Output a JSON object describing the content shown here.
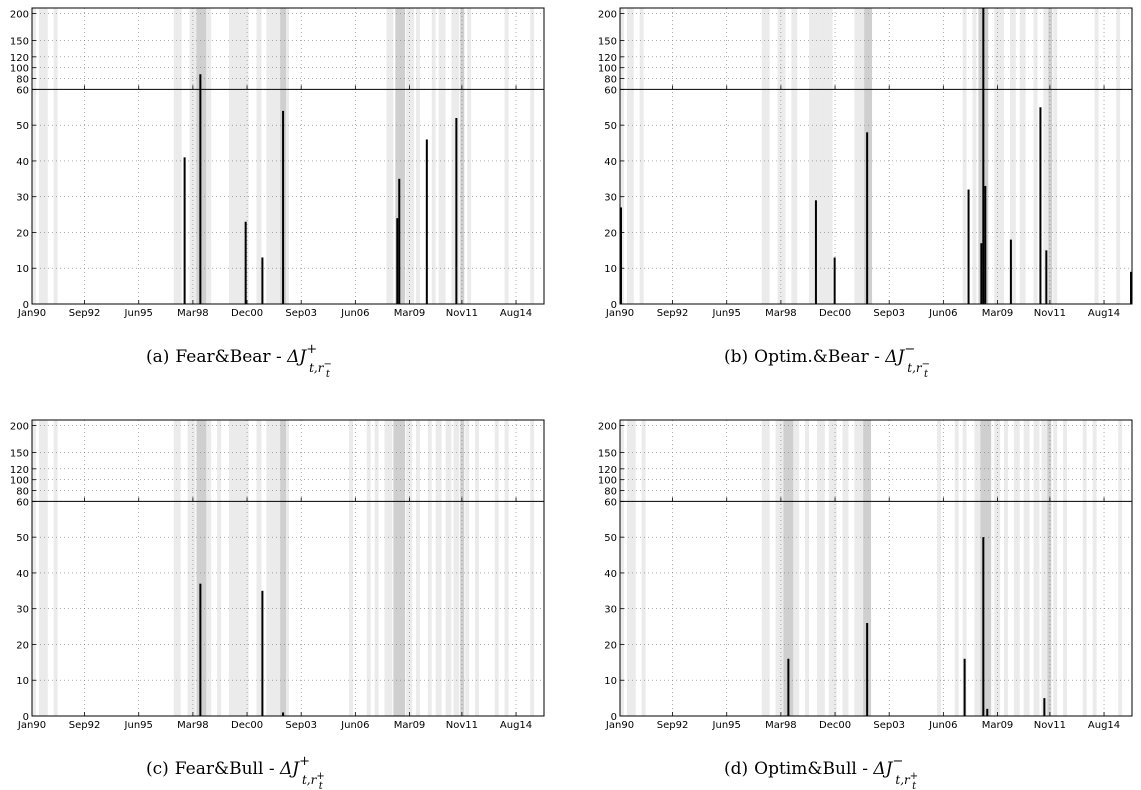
{
  "colors": {
    "shade_light": "#ebebeb",
    "shade_dark": "#cfcfcf",
    "bar": "#000000",
    "grid": "#7a7a7a",
    "axis": "#000000"
  },
  "captions": [
    {
      "tag": "(a)",
      "label": "Fear&Bear - ",
      "delta": "ΔJ",
      "sup": "+",
      "sub": "t,r",
      "sub_sup": "−",
      "sub_sub": "t"
    },
    {
      "tag": "(b)",
      "label": "Optim.&Bear - ",
      "delta": "ΔJ",
      "sup": "−",
      "sub": "t,r",
      "sub_sup": "−",
      "sub_sub": "t"
    },
    {
      "tag": "(c)",
      "label": "Fear&Bull - ",
      "delta": "ΔJ",
      "sup": "+",
      "sub": "t,r",
      "sub_sup": "+",
      "sub_sub": "t"
    },
    {
      "tag": "(d)",
      "label": "Optim&Bull - ",
      "delta": "ΔJ",
      "sup": "−",
      "sub": "t,r",
      "sub_sup": "+",
      "sub_sub": "t"
    }
  ],
  "chart_data": [
    {
      "type": "bar",
      "title": "",
      "x_ticks": [
        "Jan90",
        "Sep92",
        "Jun95",
        "Mar98",
        "Dec00",
        "Sep03",
        "Jun06",
        "Mar09",
        "Nov11",
        "Aug14"
      ],
      "x_tick_years": [
        1990.0,
        1992.67,
        1995.42,
        1998.17,
        2000.92,
        2003.67,
        2006.42,
        2009.17,
        2011.83,
        2014.58
      ],
      "xlim": [
        1990.0,
        2016.0
      ],
      "y_ticks_lower": [
        0,
        10,
        20,
        30,
        40,
        50,
        60
      ],
      "y_ticks_upper": [
        60,
        80,
        100,
        120,
        150,
        200
      ],
      "ylim": [
        0,
        210
      ],
      "y_break": 60,
      "grid": true,
      "bars": [
        {
          "x": 1997.75,
          "value": 41
        },
        {
          "x": 1998.55,
          "value": 88
        },
        {
          "x": 2000.85,
          "value": 23
        },
        {
          "x": 2001.7,
          "value": 13
        },
        {
          "x": 2002.75,
          "value": 54
        },
        {
          "x": 2008.55,
          "value": 24
        },
        {
          "x": 2008.65,
          "value": 35
        },
        {
          "x": 2010.05,
          "value": 46
        },
        {
          "x": 2011.55,
          "value": 52
        }
      ],
      "shade_light": [
        [
          1990.0,
          1990.2
        ],
        [
          1990.35,
          1990.8
        ],
        [
          1991.1,
          1991.3
        ],
        [
          1997.2,
          1997.6
        ],
        [
          1998.0,
          1998.35
        ],
        [
          1998.85,
          1999.1
        ],
        [
          2000.0,
          2001.0
        ],
        [
          2001.4,
          2001.65
        ],
        [
          2001.9,
          2002.6
        ],
        [
          2002.9,
          2003.05
        ],
        [
          2008.0,
          2008.35
        ],
        [
          2009.0,
          2009.4
        ],
        [
          2009.5,
          2009.7
        ],
        [
          2010.3,
          2010.5
        ],
        [
          2010.65,
          2011.0
        ],
        [
          2011.3,
          2011.7
        ],
        [
          2012.1,
          2012.3
        ],
        [
          2014.0,
          2014.2
        ],
        [
          2015.3,
          2015.5
        ]
      ],
      "shade_dark": [
        [
          1998.35,
          1998.85
        ],
        [
          2002.6,
          2002.9
        ],
        [
          2008.45,
          2008.95
        ],
        [
          2011.75,
          2011.95
        ]
      ]
    },
    {
      "type": "bar",
      "title": "",
      "x_ticks": [
        "Jan90",
        "Sep92",
        "Jun95",
        "Mar98",
        "Dec00",
        "Sep03",
        "Jun06",
        "Mar09",
        "Nov11",
        "Aug14"
      ],
      "x_tick_years": [
        1990.0,
        1992.67,
        1995.42,
        1998.17,
        2000.92,
        2003.67,
        2006.42,
        2009.17,
        2011.83,
        2014.58
      ],
      "xlim": [
        1990.0,
        2016.0
      ],
      "y_ticks_lower": [
        0,
        10,
        20,
        30,
        40,
        50,
        60
      ],
      "y_ticks_upper": [
        60,
        80,
        100,
        120,
        150,
        200
      ],
      "ylim": [
        0,
        210
      ],
      "y_break": 60,
      "grid": true,
      "bars": [
        {
          "x": 1990.05,
          "value": 27
        },
        {
          "x": 1999.95,
          "value": 29
        },
        {
          "x": 2000.9,
          "value": 13
        },
        {
          "x": 2002.55,
          "value": 48
        },
        {
          "x": 2007.7,
          "value": 32
        },
        {
          "x": 2008.35,
          "value": 17
        },
        {
          "x": 2008.45,
          "value": 210
        },
        {
          "x": 2008.55,
          "value": 33
        },
        {
          "x": 2009.85,
          "value": 18
        },
        {
          "x": 2011.35,
          "value": 55
        },
        {
          "x": 2011.65,
          "value": 15
        },
        {
          "x": 2015.95,
          "value": 9
        }
      ],
      "shade_light": [
        [
          1990.0,
          1990.2
        ],
        [
          1990.35,
          1990.7
        ],
        [
          1991.0,
          1991.2
        ],
        [
          1997.2,
          1997.6
        ],
        [
          1998.0,
          1998.4
        ],
        [
          1998.7,
          1999.0
        ],
        [
          1999.6,
          2000.0
        ],
        [
          2000.0,
          2000.8
        ],
        [
          2001.9,
          2002.4
        ],
        [
          2007.4,
          2007.6
        ],
        [
          2007.9,
          2008.1
        ],
        [
          2009.0,
          2009.5
        ],
        [
          2009.8,
          2010.1
        ],
        [
          2010.3,
          2010.6
        ],
        [
          2011.0,
          2011.2
        ],
        [
          2011.5,
          2011.75
        ],
        [
          2012.0,
          2012.2
        ],
        [
          2014.1,
          2014.3
        ],
        [
          2015.2,
          2015.4
        ]
      ],
      "shade_dark": [
        [
          2002.4,
          2002.8
        ],
        [
          2008.2,
          2008.7
        ],
        [
          2011.75,
          2011.95
        ]
      ]
    },
    {
      "type": "bar",
      "title": "",
      "x_ticks": [
        "Jan90",
        "Sep92",
        "Jun95",
        "Mar98",
        "Dec00",
        "Sep03",
        "Jun06",
        "Mar09",
        "Nov11",
        "Aug14"
      ],
      "x_tick_years": [
        1990.0,
        1992.67,
        1995.42,
        1998.17,
        2000.92,
        2003.67,
        2006.42,
        2009.17,
        2011.83,
        2014.58
      ],
      "xlim": [
        1990.0,
        2016.0
      ],
      "y_ticks_lower": [
        0,
        10,
        20,
        30,
        40,
        50,
        60
      ],
      "y_ticks_upper": [
        60,
        80,
        100,
        120,
        150,
        200
      ],
      "ylim": [
        0,
        210
      ],
      "y_break": 60,
      "grid": true,
      "bars": [
        {
          "x": 1998.55,
          "value": 37
        },
        {
          "x": 2001.7,
          "value": 35
        },
        {
          "x": 2002.75,
          "value": 1
        }
      ],
      "shade_light": [
        [
          1990.0,
          1990.2
        ],
        [
          1990.35,
          1990.8
        ],
        [
          1991.1,
          1991.3
        ],
        [
          1997.2,
          1997.55
        ],
        [
          1997.9,
          1998.3
        ],
        [
          1998.8,
          1999.1
        ],
        [
          1999.4,
          1999.6
        ],
        [
          2000.0,
          2001.0
        ],
        [
          2001.4,
          2001.65
        ],
        [
          2001.9,
          2002.6
        ],
        [
          2002.9,
          2003.05
        ],
        [
          2006.1,
          2006.3
        ],
        [
          2007.0,
          2007.2
        ],
        [
          2007.4,
          2007.6
        ],
        [
          2007.9,
          2008.3
        ],
        [
          2009.0,
          2009.3
        ],
        [
          2009.5,
          2009.7
        ],
        [
          2010.1,
          2010.3
        ],
        [
          2010.5,
          2010.8
        ],
        [
          2011.0,
          2011.3
        ],
        [
          2011.4,
          2011.7
        ],
        [
          2012.0,
          2012.2
        ],
        [
          2012.5,
          2012.7
        ],
        [
          2013.5,
          2013.7
        ],
        [
          2014.0,
          2014.2
        ],
        [
          2015.3,
          2015.5
        ]
      ],
      "shade_dark": [
        [
          1998.35,
          1998.85
        ],
        [
          2002.6,
          2002.9
        ],
        [
          2008.35,
          2008.95
        ],
        [
          2011.75,
          2011.95
        ]
      ]
    },
    {
      "type": "bar",
      "title": "",
      "x_ticks": [
        "Jan90",
        "Sep92",
        "Jun95",
        "Mar98",
        "Dec00",
        "Sep03",
        "Jun06",
        "Mar09",
        "Nov11",
        "Aug14"
      ],
      "x_tick_years": [
        1990.0,
        1992.67,
        1995.42,
        1998.17,
        2000.92,
        2003.67,
        2006.42,
        2009.17,
        2011.83,
        2014.58
      ],
      "xlim": [
        1990.0,
        2016.0
      ],
      "y_ticks_lower": [
        0,
        10,
        20,
        30,
        40,
        50,
        60
      ],
      "y_ticks_upper": [
        60,
        80,
        100,
        120,
        150,
        200
      ],
      "ylim": [
        0,
        210
      ],
      "y_break": 60,
      "grid": true,
      "bars": [
        {
          "x": 1998.55,
          "value": 16
        },
        {
          "x": 2002.55,
          "value": 26
        },
        {
          "x": 2007.5,
          "value": 16
        },
        {
          "x": 2008.45,
          "value": 50
        },
        {
          "x": 2008.65,
          "value": 2
        },
        {
          "x": 2011.55,
          "value": 5
        }
      ],
      "shade_light": [
        [
          1990.0,
          1990.2
        ],
        [
          1990.35,
          1990.8
        ],
        [
          1991.1,
          1991.3
        ],
        [
          1997.2,
          1997.6
        ],
        [
          1997.9,
          1998.3
        ],
        [
          1998.8,
          1999.1
        ],
        [
          1999.4,
          1999.6
        ],
        [
          2000.0,
          2000.4
        ],
        [
          2000.6,
          2001.0
        ],
        [
          2001.3,
          2001.6
        ],
        [
          2001.9,
          2002.4
        ],
        [
          2006.1,
          2006.3
        ],
        [
          2007.0,
          2007.2
        ],
        [
          2007.4,
          2007.6
        ],
        [
          2008.0,
          2008.3
        ],
        [
          2009.0,
          2009.3
        ],
        [
          2009.5,
          2009.7
        ],
        [
          2010.0,
          2010.3
        ],
        [
          2010.5,
          2010.8
        ],
        [
          2011.0,
          2011.3
        ],
        [
          2011.4,
          2011.7
        ],
        [
          2012.0,
          2012.2
        ],
        [
          2012.5,
          2012.7
        ],
        [
          2013.5,
          2013.7
        ],
        [
          2014.0,
          2014.2
        ],
        [
          2015.3,
          2015.5
        ]
      ],
      "shade_dark": [
        [
          1998.3,
          1998.8
        ],
        [
          2002.35,
          2002.75
        ],
        [
          2008.3,
          2008.85
        ],
        [
          2011.7,
          2011.9
        ]
      ]
    }
  ]
}
